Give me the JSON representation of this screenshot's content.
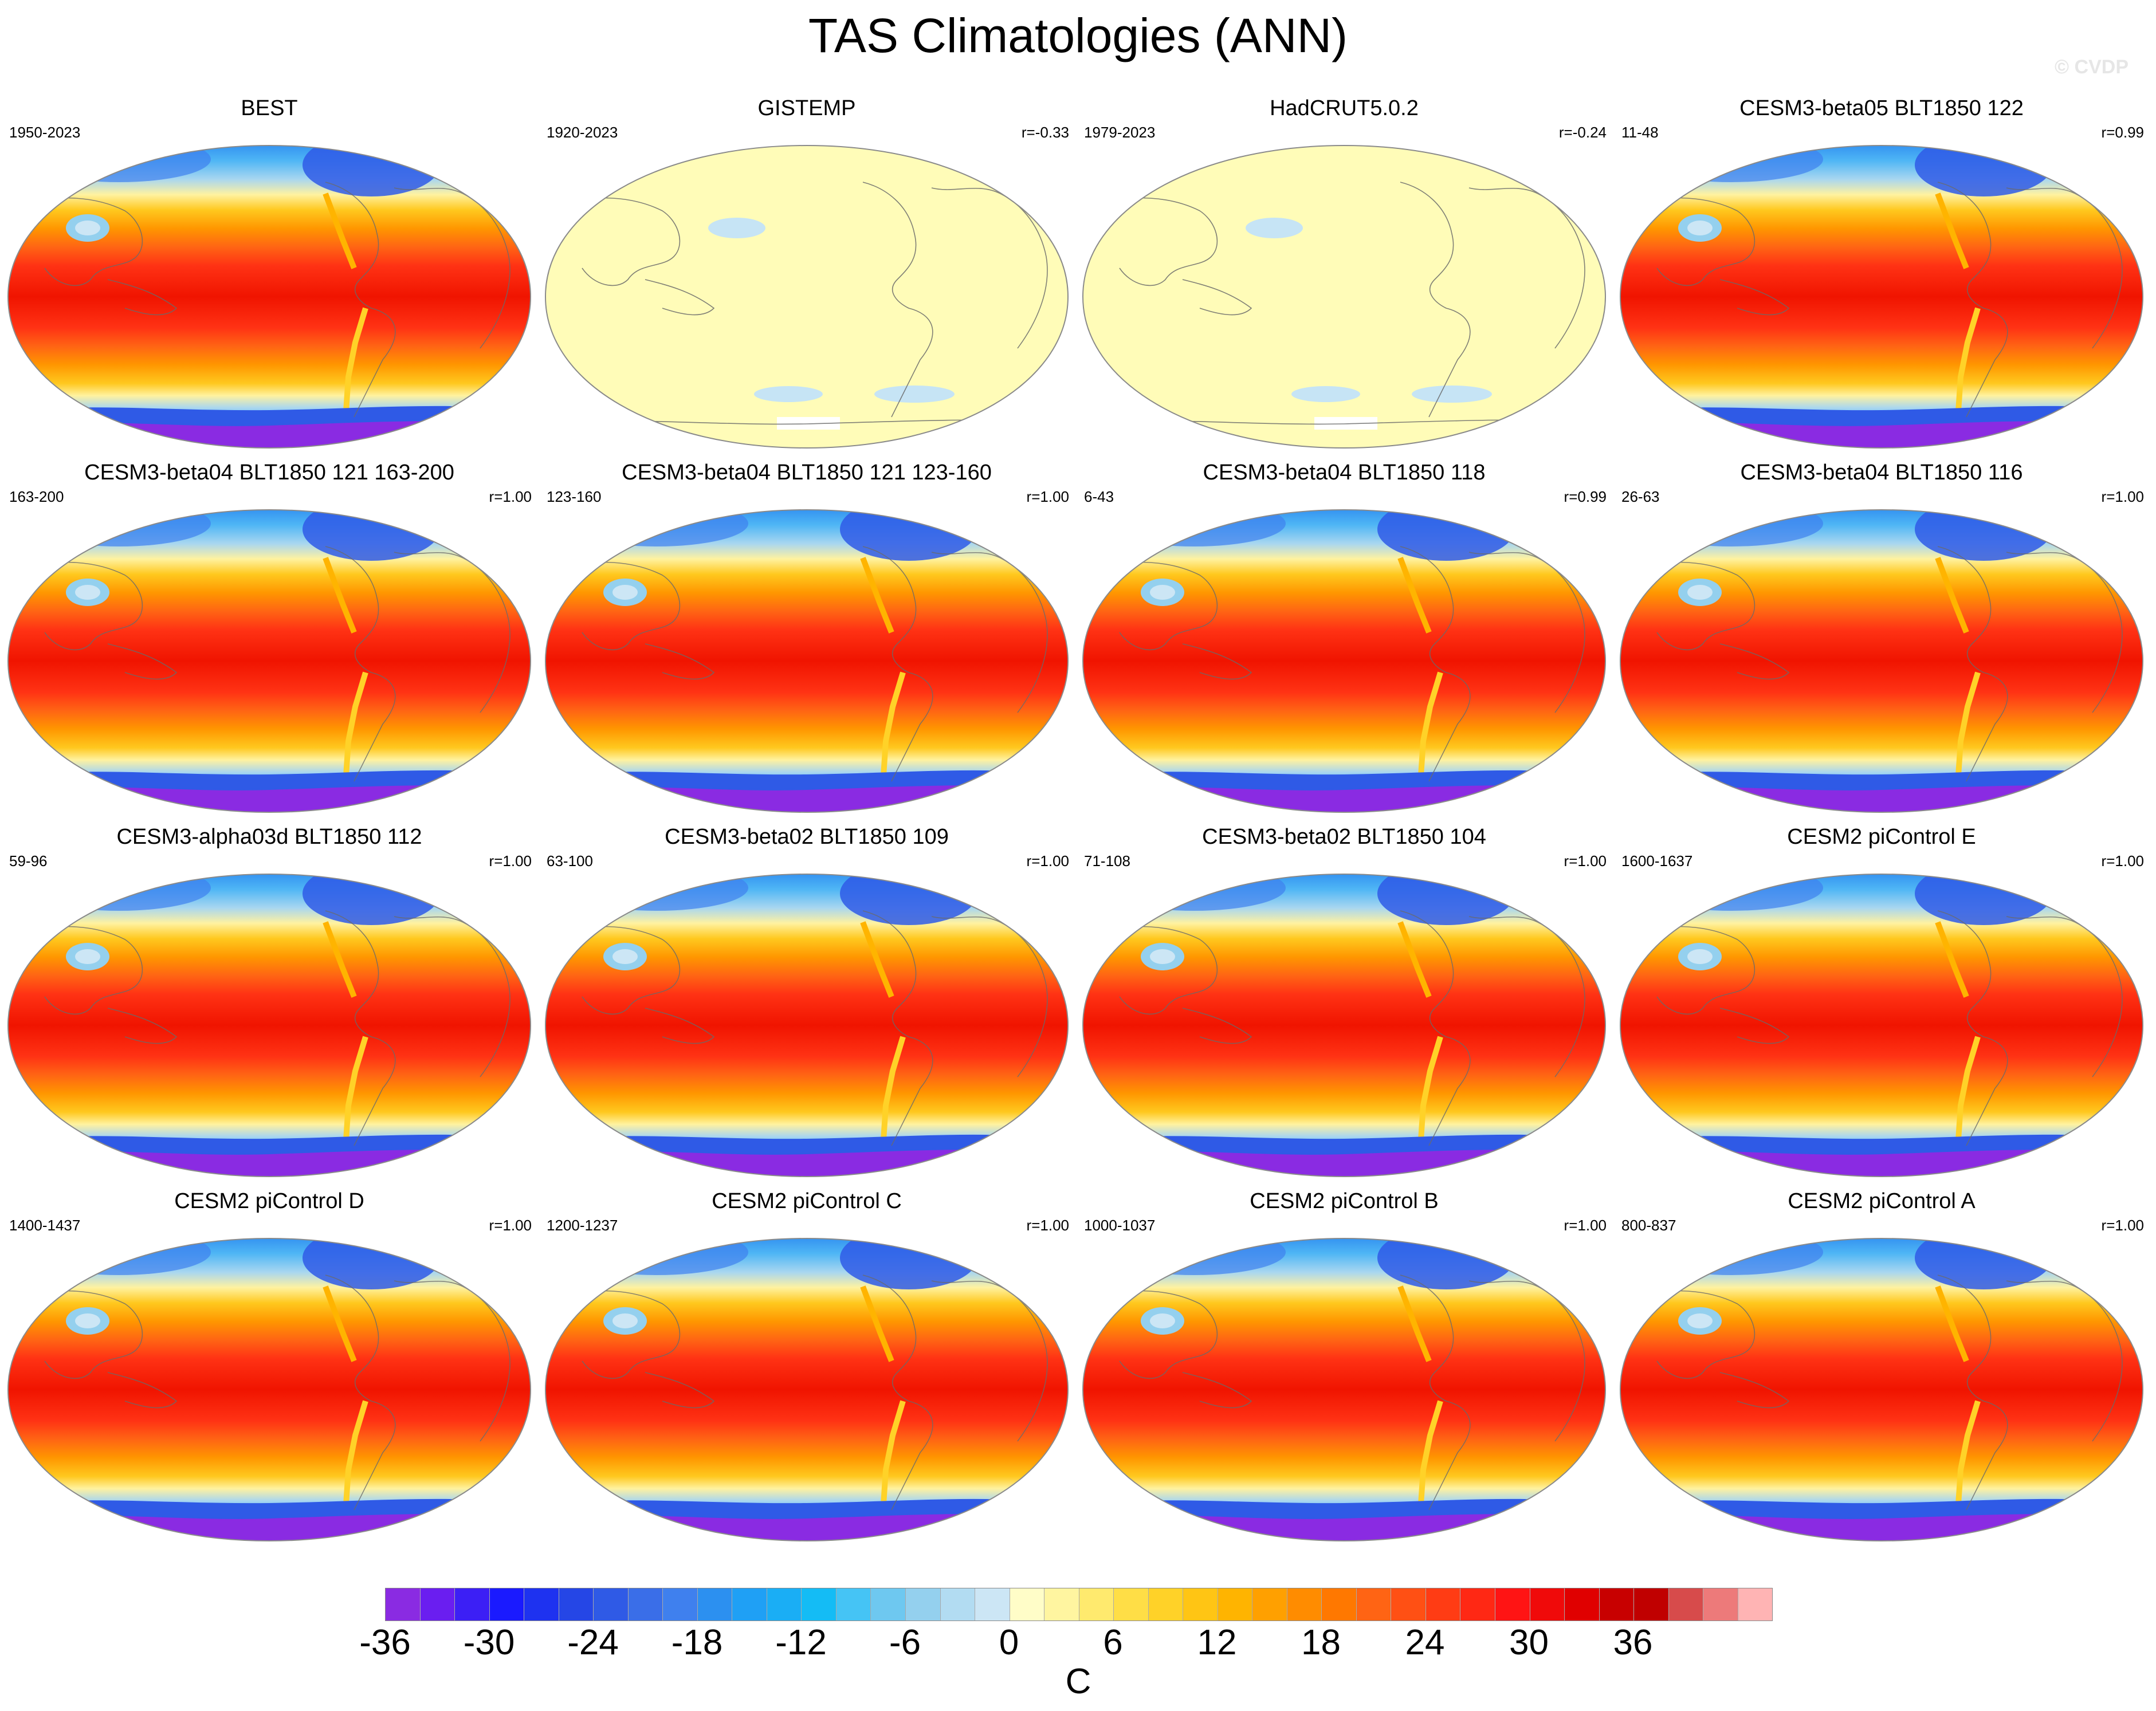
{
  "title": "TAS Climatologies (ANN)",
  "watermark": "© CVDP",
  "unit_label": "C",
  "panels": [
    {
      "title": "BEST",
      "period": "1950-2023",
      "r": "",
      "style": "full"
    },
    {
      "title": "GISTEMP",
      "period": "1920-2023",
      "r": "r=-0.33",
      "style": "pale"
    },
    {
      "title": "HadCRUT5.0.2",
      "period": "1979-2023",
      "r": "r=-0.24",
      "style": "pale"
    },
    {
      "title": "CESM3-beta05 BLT1850 122",
      "period": "11-48",
      "r": "r=0.99",
      "style": "full"
    },
    {
      "title": "CESM3-beta04 BLT1850 121 163-200",
      "period": "163-200",
      "r": "r=1.00",
      "style": "full"
    },
    {
      "title": "CESM3-beta04 BLT1850 121 123-160",
      "period": "123-160",
      "r": "r=1.00",
      "style": "full"
    },
    {
      "title": "CESM3-beta04 BLT1850 118",
      "period": "6-43",
      "r": "r=0.99",
      "style": "full"
    },
    {
      "title": "CESM3-beta04 BLT1850 116",
      "period": "26-63",
      "r": "r=1.00",
      "style": "full"
    },
    {
      "title": "CESM3-alpha03d BLT1850 112",
      "period": "59-96",
      "r": "r=1.00",
      "style": "full"
    },
    {
      "title": "CESM3-beta02 BLT1850 109",
      "period": "63-100",
      "r": "r=1.00",
      "style": "full"
    },
    {
      "title": "CESM3-beta02 BLT1850 104",
      "period": "71-108",
      "r": "r=1.00",
      "style": "full"
    },
    {
      "title": "CESM2 piControl E",
      "period": "1600-1637",
      "r": "r=1.00",
      "style": "full"
    },
    {
      "title": "CESM2 piControl D",
      "period": "1400-1437",
      "r": "r=1.00",
      "style": "full"
    },
    {
      "title": "CESM2 piControl C",
      "period": "1200-1237",
      "r": "r=1.00",
      "style": "full"
    },
    {
      "title": "CESM2 piControl B",
      "period": "1000-1037",
      "r": "r=1.00",
      "style": "full"
    },
    {
      "title": "CESM2 piControl A",
      "period": "800-837",
      "r": "r=1.00",
      "style": "full"
    }
  ],
  "colorbar": {
    "colors": [
      "#8a2be2",
      "#6a1ef0",
      "#3c1ff5",
      "#1a1aff",
      "#1e32f0",
      "#2546e6",
      "#2f5ae6",
      "#3a6ee8",
      "#3f80ee",
      "#2c90f0",
      "#1fa0f5",
      "#1aaef5",
      "#14bcf5",
      "#45c4f5",
      "#6ec8f0",
      "#94d0ee",
      "#b2dcf2",
      "#cce6f5",
      "#fffdc8",
      "#fff5a0",
      "#ffea6e",
      "#ffde46",
      "#ffd228",
      "#ffc514",
      "#ffb400",
      "#ffa000",
      "#ff8c00",
      "#ff7800",
      "#ff6414",
      "#ff5014",
      "#ff3c14",
      "#ff2814",
      "#ff1414",
      "#f00a0a",
      "#e00000",
      "#c80000",
      "#c00000",
      "#d74b4b",
      "#ed7a7a",
      "#ffb4b4"
    ],
    "ticks": [
      "-36",
      "-30",
      "-24",
      "-18",
      "-12",
      "-6",
      "0",
      "6",
      "12",
      "18",
      "24",
      "30",
      "36"
    ]
  }
}
